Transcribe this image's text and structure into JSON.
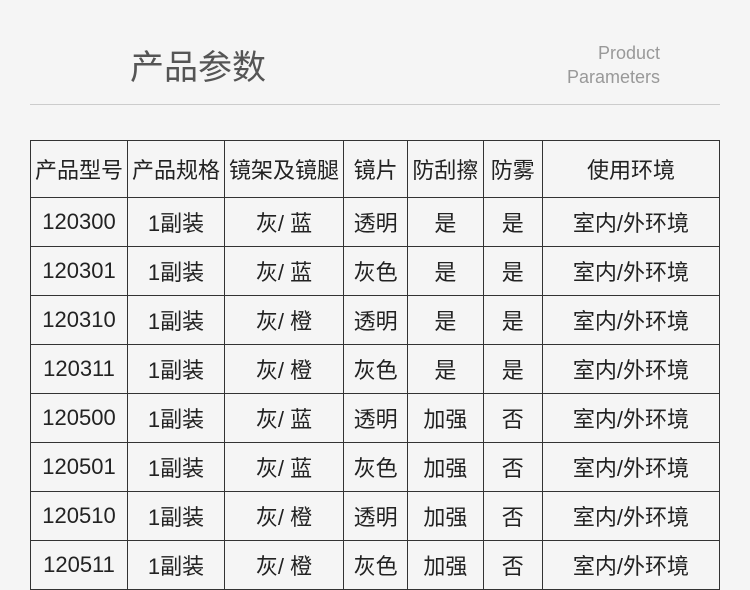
{
  "header": {
    "title_zh": "产品参数",
    "title_en_1": "Product",
    "title_en_2": "Parameters"
  },
  "table": {
    "columns": [
      "产品型号",
      "产品规格",
      "镜架及镜腿",
      "镜片",
      "防刮擦",
      "防雾",
      "使用环境"
    ],
    "column_widths": [
      "14%",
      "14%",
      "13%",
      "10%",
      "11%",
      "9%",
      "29%"
    ],
    "rows": [
      [
        "120300",
        "1副装",
        "灰/ 蓝",
        "透明",
        "是",
        "是",
        "室内/外环境"
      ],
      [
        "120301",
        "1副装",
        "灰/ 蓝",
        "灰色",
        "是",
        "是",
        "室内/外环境"
      ],
      [
        "120310",
        "1副装",
        "灰/ 橙",
        "透明",
        "是",
        "是",
        "室内/外环境"
      ],
      [
        "120311",
        "1副装",
        "灰/ 橙",
        "灰色",
        "是",
        "是",
        "室内/外环境"
      ],
      [
        "120500",
        "1副装",
        "灰/ 蓝",
        "透明",
        "加强",
        "否",
        "室内/外环境"
      ],
      [
        "120501",
        "1副装",
        "灰/ 蓝",
        "灰色",
        "加强",
        "否",
        "室内/外环境"
      ],
      [
        "120510",
        "1副装",
        "灰/ 橙",
        "透明",
        "加强",
        "否",
        "室内/外环境"
      ],
      [
        "120511",
        "1副装",
        "灰/ 橙",
        "灰色",
        "加强",
        "否",
        "室内/外环境"
      ]
    ]
  },
  "colors": {
    "background": "#f5f5f5",
    "title_zh": "#555555",
    "title_en": "#999999",
    "border": "#333333",
    "text": "#222222",
    "divider": "#cccccc"
  }
}
